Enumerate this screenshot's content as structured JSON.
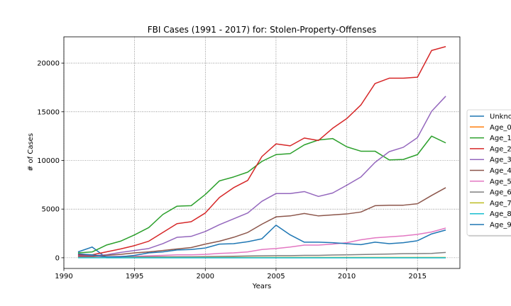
{
  "chart_data": {
    "type": "line",
    "title": "FBI Cases (1991 - 2017) for: Stolen-Property-Offenses",
    "xlabel": "Years",
    "ylabel": "# of Cases",
    "xlim": [
      1990,
      2018
    ],
    "ylim": [
      -1100,
      22700
    ],
    "xticks": [
      1990,
      1995,
      2000,
      2005,
      2010,
      2015
    ],
    "xtick_labels": [
      "1990",
      "1995",
      "2000",
      "2005",
      "2010",
      "2015"
    ],
    "yticks": [
      0,
      5000,
      10000,
      15000,
      20000
    ],
    "ytick_labels": [
      "0",
      "5000",
      "10000",
      "15000",
      "20000"
    ],
    "grid": true,
    "legend_position": "right",
    "x": [
      1991,
      1992,
      1993,
      1994,
      1995,
      1996,
      1997,
      1998,
      1999,
      2000,
      2001,
      2002,
      2003,
      2004,
      2005,
      2006,
      2007,
      2008,
      2009,
      2010,
      2011,
      2012,
      2013,
      2014,
      2015,
      2016,
      2017
    ],
    "series": [
      {
        "name": "Unknown",
        "color": "#1f77b4",
        "values": [
          600,
          1100,
          0,
          0,
          0,
          0,
          0,
          0,
          0,
          0,
          0,
          0,
          0,
          0,
          0,
          0,
          0,
          0,
          0,
          0,
          0,
          0,
          0,
          0,
          0,
          0,
          0
        ]
      },
      {
        "name": "Age_0",
        "color": "#ff7f0e",
        "values": [
          30,
          30,
          20,
          20,
          20,
          20,
          20,
          20,
          20,
          20,
          20,
          20,
          20,
          20,
          20,
          20,
          20,
          20,
          20,
          20,
          20,
          20,
          20,
          20,
          20,
          20,
          20
        ]
      },
      {
        "name": "Age_1",
        "color": "#2ca02c",
        "values": [
          500,
          600,
          1300,
          1700,
          2350,
          3100,
          4450,
          5300,
          5350,
          6500,
          7900,
          8300,
          8800,
          9900,
          10600,
          10700,
          11600,
          12100,
          12250,
          11400,
          10950,
          10950,
          10050,
          10100,
          10600,
          12500,
          11800
        ]
      },
      {
        "name": "Age_2",
        "color": "#d62728",
        "values": [
          300,
          300,
          600,
          900,
          1250,
          1700,
          2600,
          3500,
          3700,
          4600,
          6200,
          7200,
          7950,
          10400,
          11700,
          11500,
          12300,
          12050,
          13300,
          14300,
          15700,
          17900,
          18450,
          18450,
          18550,
          21300,
          21700
        ]
      },
      {
        "name": "Age_3",
        "color": "#9467bd",
        "values": [
          200,
          200,
          300,
          550,
          750,
          950,
          1450,
          2100,
          2200,
          2700,
          3400,
          4000,
          4600,
          5800,
          6600,
          6600,
          6800,
          6300,
          6650,
          7450,
          8300,
          9800,
          10900,
          11350,
          12350,
          15050,
          16600
        ]
      },
      {
        "name": "Age_4",
        "color": "#8c564b",
        "values": [
          150,
          150,
          250,
          350,
          500,
          600,
          750,
          900,
          1050,
          1400,
          1700,
          2100,
          2600,
          3450,
          4200,
          4300,
          4550,
          4300,
          4400,
          4500,
          4700,
          5350,
          5400,
          5400,
          5550,
          6400,
          7200
        ]
      },
      {
        "name": "Age_5",
        "color": "#e377c2",
        "values": [
          50,
          50,
          100,
          150,
          150,
          200,
          250,
          300,
          300,
          350,
          450,
          500,
          600,
          850,
          950,
          1100,
          1300,
          1300,
          1400,
          1550,
          1850,
          2050,
          2150,
          2250,
          2400,
          2650,
          3050
        ]
      },
      {
        "name": "Age_6",
        "color": "#7f7f7f",
        "values": [
          30,
          30,
          40,
          60,
          80,
          100,
          100,
          100,
          100,
          120,
          140,
          160,
          180,
          200,
          220,
          220,
          250,
          250,
          280,
          300,
          330,
          360,
          380,
          420,
          430,
          450,
          550
        ]
      },
      {
        "name": "Age_7",
        "color": "#bcbd22",
        "values": [
          10,
          10,
          10,
          10,
          20,
          20,
          20,
          20,
          20,
          30,
          30,
          30,
          30,
          30,
          30,
          30,
          30,
          30,
          30,
          30,
          30,
          30,
          30,
          30,
          30,
          30,
          30
        ]
      },
      {
        "name": "Age_8",
        "color": "#17becf",
        "values": [
          5,
          5,
          5,
          5,
          5,
          5,
          5,
          5,
          5,
          5,
          5,
          5,
          5,
          5,
          5,
          5,
          5,
          5,
          5,
          5,
          5,
          5,
          5,
          5,
          5,
          5,
          5
        ]
      },
      {
        "name": "Age_9",
        "color": "#1f77b4",
        "values": [
          400,
          300,
          100,
          100,
          250,
          500,
          600,
          800,
          850,
          1000,
          1400,
          1450,
          1650,
          1950,
          3350,
          2350,
          1600,
          1600,
          1550,
          1450,
          1350,
          1600,
          1450,
          1550,
          1750,
          2450,
          2850
        ]
      }
    ]
  }
}
